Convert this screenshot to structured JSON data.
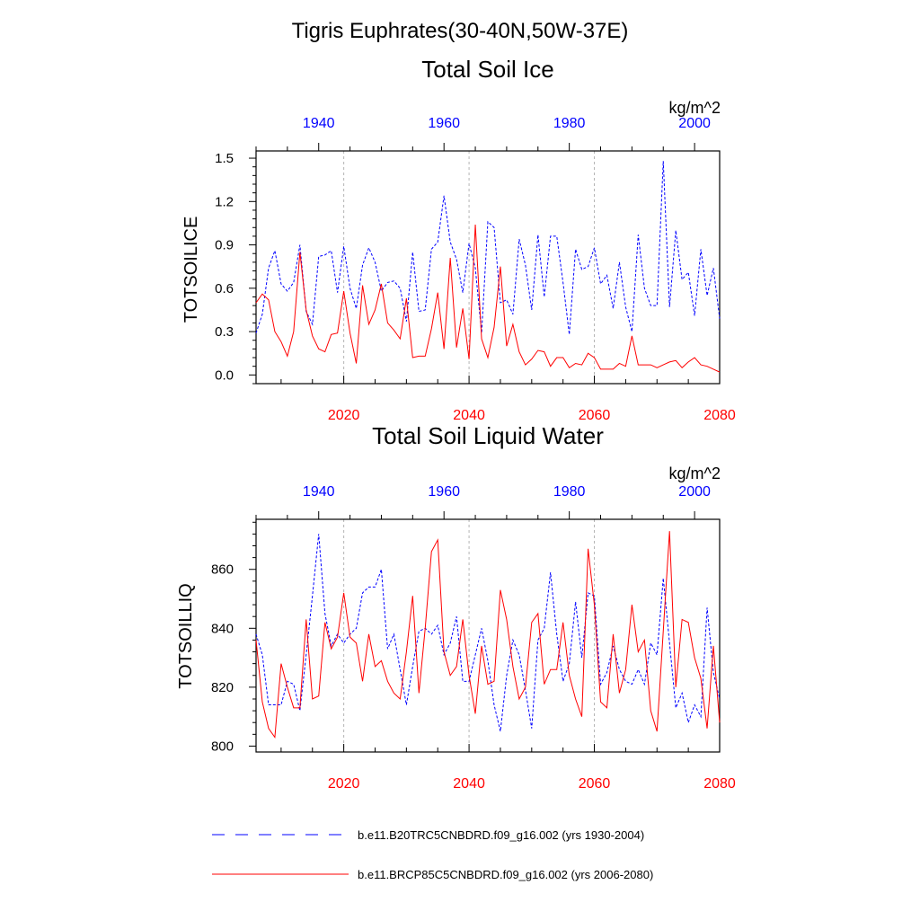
{
  "figure": {
    "title_line1": "Tigris Euphrates(30-40N,50W-37E)",
    "colors": {
      "historical": "#0000ff",
      "future": "#ff0000",
      "grid": "#b4b4b4",
      "axis": "#000000"
    }
  },
  "legend": {
    "entries": [
      {
        "label": "b.e11.B20TRC5CNBDRD.f09_g16.002 (yrs 1930-2004)",
        "color": "#0000ff",
        "style": "dashed"
      },
      {
        "label": "b.e11.BRCP85C5CNBDRD.f09_g16.002 (yrs 2006-2080)",
        "color": "#ff0000",
        "style": "solid"
      }
    ]
  },
  "chart_data": [
    {
      "type": "line",
      "title": "Total Soil Ice",
      "ylabel": "TOTSOILICE",
      "units": "kg/m^2",
      "ylim": [
        -0.06,
        1.55
      ],
      "yticks": [
        0.0,
        0.3,
        0.6,
        0.9,
        1.2,
        1.5
      ],
      "ytick_labels": [
        "0.0",
        "0.3",
        "0.6",
        "0.9",
        "1.2",
        "1.5"
      ],
      "bottom_axis": {
        "range": [
          2006,
          2080
        ],
        "ticks": [
          2020,
          2040,
          2060,
          2080
        ],
        "color": "#ff0000"
      },
      "top_axis": {
        "range": [
          1930,
          2004
        ],
        "ticks": [
          1940,
          1960,
          1980,
          2000
        ],
        "color": "#0000ff"
      },
      "grid_x": [
        2020,
        2040,
        2060
      ],
      "series": [
        {
          "x_start": 1930,
          "x_end": 2004,
          "style": "dashed",
          "color": "#0000ff",
          "values": [
            0.29,
            0.42,
            0.74,
            0.86,
            0.63,
            0.58,
            0.64,
            0.9,
            0.44,
            0.35,
            0.82,
            0.83,
            0.86,
            0.57,
            0.89,
            0.6,
            0.46,
            0.76,
            0.88,
            0.78,
            0.58,
            0.64,
            0.65,
            0.6,
            0.37,
            0.85,
            0.44,
            0.45,
            0.87,
            0.92,
            1.24,
            0.92,
            0.8,
            0.57,
            0.91,
            0.74,
            0.29,
            1.06,
            1.02,
            0.5,
            0.52,
            0.42,
            0.94,
            0.76,
            0.45,
            0.97,
            0.54,
            0.96,
            0.96,
            0.64,
            0.28,
            0.87,
            0.73,
            0.75,
            0.88,
            0.63,
            0.69,
            0.46,
            0.78,
            0.47,
            0.3,
            0.97,
            0.6,
            0.48,
            0.48,
            1.48,
            0.47,
            1.0,
            0.66,
            0.71,
            0.41,
            0.87,
            0.55,
            0.74,
            0.39
          ]
        },
        {
          "x_start": 2006,
          "x_end": 2080,
          "style": "solid",
          "color": "#ff0000",
          "values": [
            0.5,
            0.56,
            0.52,
            0.3,
            0.23,
            0.13,
            0.3,
            0.85,
            0.45,
            0.27,
            0.18,
            0.16,
            0.28,
            0.29,
            0.58,
            0.29,
            0.08,
            0.62,
            0.35,
            0.45,
            0.63,
            0.36,
            0.31,
            0.25,
            0.53,
            0.12,
            0.13,
            0.13,
            0.32,
            0.57,
            0.18,
            0.81,
            0.19,
            0.46,
            0.11,
            1.04,
            0.25,
            0.12,
            0.33,
            0.75,
            0.2,
            0.35,
            0.16,
            0.07,
            0.11,
            0.17,
            0.16,
            0.06,
            0.12,
            0.12,
            0.05,
            0.08,
            0.07,
            0.15,
            0.12,
            0.04,
            0.04,
            0.04,
            0.08,
            0.06,
            0.27,
            0.07,
            0.07,
            0.07,
            0.05,
            0.07,
            0.09,
            0.1,
            0.05,
            0.09,
            0.12,
            0.07,
            0.06,
            0.04,
            0.02
          ]
        }
      ]
    },
    {
      "type": "line",
      "title": "Total Soil Liquid Water",
      "ylabel": "TOTSOILLIQ",
      "units": "kg/m^2",
      "ylim": [
        798,
        877
      ],
      "yticks": [
        800,
        820,
        840,
        860
      ],
      "ytick_labels": [
        "800",
        "820",
        "840",
        "860"
      ],
      "bottom_axis": {
        "range": [
          2006,
          2080
        ],
        "ticks": [
          2020,
          2040,
          2060,
          2080
        ],
        "color": "#ff0000"
      },
      "top_axis": {
        "range": [
          1930,
          2004
        ],
        "ticks": [
          1940,
          1960,
          1980,
          2000
        ],
        "color": "#0000ff"
      },
      "grid_x": [
        2020,
        2040,
        2060
      ],
      "series": [
        {
          "x_start": 1930,
          "x_end": 2004,
          "style": "dashed",
          "color": "#0000ff",
          "values": [
            838,
            831,
            814,
            814,
            814,
            822,
            821,
            812,
            831,
            851,
            872,
            845,
            834,
            838,
            835,
            838,
            840,
            852,
            854,
            854,
            860,
            833,
            838,
            826,
            814,
            827,
            839,
            840,
            838,
            841,
            831,
            835,
            844,
            822,
            822,
            831,
            840,
            829,
            814,
            805,
            824,
            836,
            831,
            819,
            806,
            836,
            840,
            859,
            838,
            822,
            828,
            849,
            830,
            852,
            851,
            821,
            825,
            834,
            826,
            822,
            821,
            826,
            821,
            835,
            831,
            857,
            835,
            813,
            818,
            808,
            814,
            810,
            847,
            825,
            816
          ]
        },
        {
          "x_start": 2006,
          "x_end": 2080,
          "style": "solid",
          "color": "#ff0000",
          "values": [
            836,
            815,
            806,
            803,
            828,
            820,
            813,
            813,
            843,
            816,
            817,
            842,
            833,
            837,
            852,
            837,
            835,
            822,
            838,
            827,
            829,
            822,
            818,
            816,
            832,
            851,
            818,
            840,
            866,
            870,
            832,
            824,
            827,
            843,
            824,
            811,
            834,
            821,
            822,
            853,
            843,
            827,
            816,
            820,
            842,
            845,
            821,
            826,
            826,
            842,
            824,
            816,
            810,
            867,
            848,
            815,
            813,
            838,
            818,
            826,
            848,
            832,
            836,
            812,
            805,
            839,
            873,
            820,
            843,
            842,
            830,
            823,
            806,
            834,
            808
          ]
        }
      ]
    }
  ]
}
